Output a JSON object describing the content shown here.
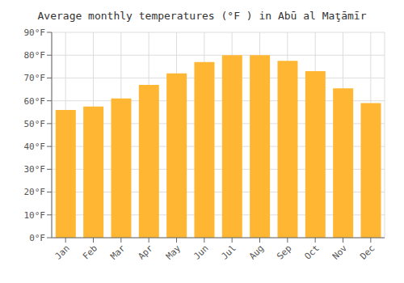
{
  "chart_data": {
    "type": "bar",
    "title": "Average monthly temperatures (°F ) in Abū al Maţāmīr",
    "categories": [
      "Jan",
      "Feb",
      "Mar",
      "Apr",
      "May",
      "Jun",
      "Jul",
      "Aug",
      "Sep",
      "Oct",
      "Nov",
      "Dec"
    ],
    "values": [
      56,
      57.5,
      61,
      67,
      72,
      77,
      80,
      80,
      77.5,
      73,
      65.5,
      59
    ],
    "color": "#FFB733",
    "ylim": [
      0,
      90
    ],
    "yticks": [
      {
        "value": 0,
        "label": "0°F"
      },
      {
        "value": 10,
        "label": "10°F"
      },
      {
        "value": 20,
        "label": "20°F"
      },
      {
        "value": 30,
        "label": "30°F"
      },
      {
        "value": 40,
        "label": "40°F"
      },
      {
        "value": 50,
        "label": "50°F"
      },
      {
        "value": 60,
        "label": "60°F"
      },
      {
        "value": 70,
        "label": "70°F"
      },
      {
        "value": 80,
        "label": "80°F"
      },
      {
        "value": 90,
        "label": "90°F"
      }
    ],
    "grid": true
  }
}
